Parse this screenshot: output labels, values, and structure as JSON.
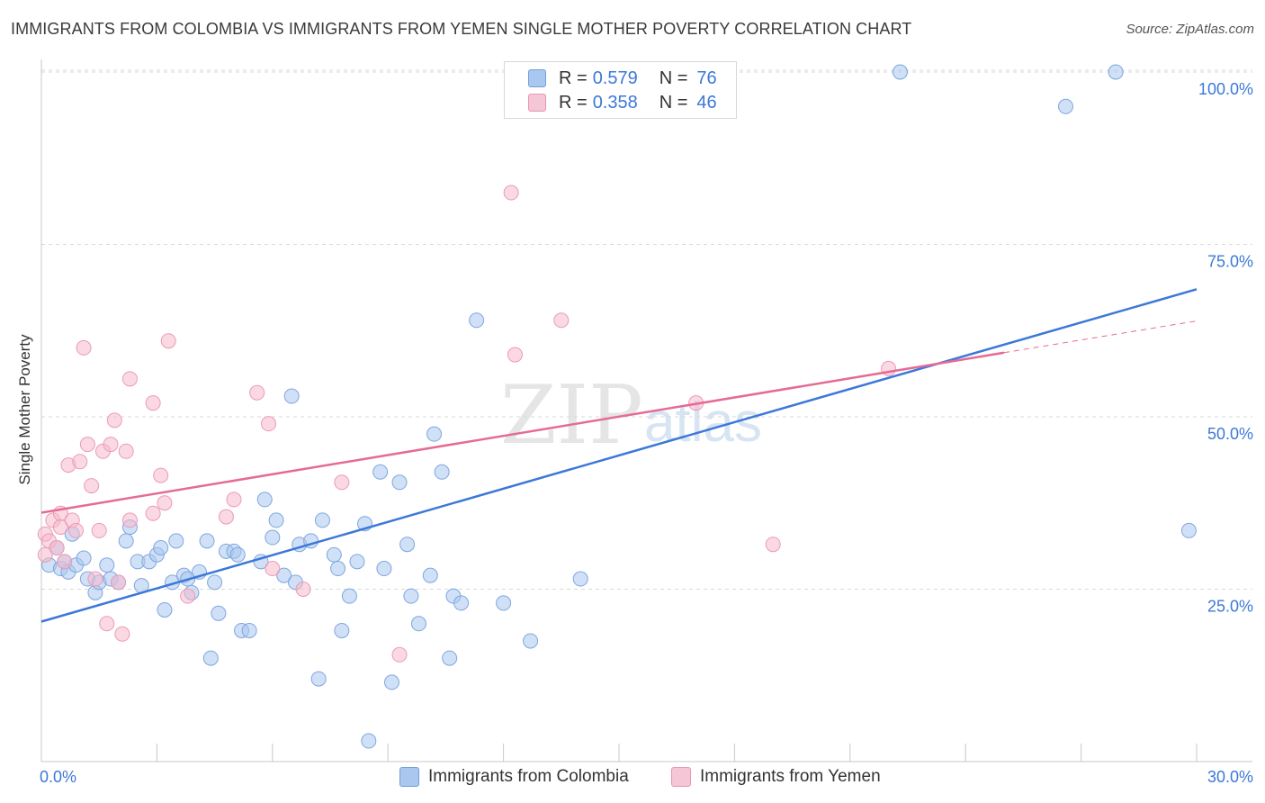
{
  "title": "IMMIGRANTS FROM COLOMBIA VS IMMIGRANTS FROM YEMEN SINGLE MOTHER POVERTY CORRELATION CHART",
  "source": "Source: ZipAtlas.com",
  "legend": {
    "colombia": {
      "r_label": "R =",
      "r_value": "0.579",
      "n_label": "N =",
      "n_value": "76"
    },
    "yemen": {
      "r_label": "R =",
      "r_value": "0.358",
      "n_label": "N =",
      "n_value": "46"
    }
  },
  "watermark": {
    "zip": "ZIP",
    "atlas": "atlas"
  },
  "colors": {
    "colombia": "#a9c7ef",
    "colombia_line": "#3c78d8",
    "yemen": "#f5b9cc",
    "yemen_line": "#e56b95",
    "axis_text": "#3c78d8"
  },
  "chart_data": {
    "type": "scatter",
    "title": "IMMIGRANTS FROM COLOMBIA VS IMMIGRANTS FROM YEMEN SINGLE MOTHER POVERTY CORRELATION CHART",
    "ylabel": "Single Mother Poverty",
    "xlabel": "",
    "xlim": [
      0,
      30
    ],
    "ylim": [
      0,
      105
    ],
    "x_tick_labels": [
      "0.0%",
      "30.0%"
    ],
    "y_tick_labels": [
      "100.0%",
      "75.0%",
      "50.0%",
      "25.0%"
    ],
    "y_ticks": [
      100,
      75,
      50,
      25
    ],
    "grid": true,
    "legend_position": "top-center",
    "series": [
      {
        "name": "Immigrants from Colombia",
        "color": "#a9c7ef",
        "points": [
          [
            0.2,
            28.5
          ],
          [
            0.4,
            31
          ],
          [
            0.5,
            28
          ],
          [
            0.6,
            29
          ],
          [
            0.7,
            27.5
          ],
          [
            0.8,
            33
          ],
          [
            0.9,
            28.5
          ],
          [
            1.1,
            29.5
          ],
          [
            1.2,
            26.5
          ],
          [
            1.4,
            24.5
          ],
          [
            1.5,
            26
          ],
          [
            1.7,
            28.5
          ],
          [
            1.8,
            26.5
          ],
          [
            2.0,
            26
          ],
          [
            2.2,
            32
          ],
          [
            2.3,
            34
          ],
          [
            2.5,
            29
          ],
          [
            2.6,
            25.5
          ],
          [
            2.8,
            29
          ],
          [
            3.0,
            30
          ],
          [
            3.1,
            31
          ],
          [
            3.2,
            22
          ],
          [
            3.4,
            26
          ],
          [
            3.5,
            32
          ],
          [
            3.7,
            27
          ],
          [
            3.8,
            26.5
          ],
          [
            3.9,
            24.5
          ],
          [
            4.1,
            27.5
          ],
          [
            4.3,
            32
          ],
          [
            4.4,
            15
          ],
          [
            4.5,
            26
          ],
          [
            4.6,
            21.5
          ],
          [
            4.8,
            30.5
          ],
          [
            5.0,
            30.5
          ],
          [
            5.1,
            30
          ],
          [
            5.2,
            19
          ],
          [
            5.4,
            19
          ],
          [
            5.7,
            29
          ],
          [
            5.8,
            38
          ],
          [
            6.0,
            32.5
          ],
          [
            6.1,
            35
          ],
          [
            6.3,
            27
          ],
          [
            6.5,
            53
          ],
          [
            6.6,
            26
          ],
          [
            6.7,
            31.5
          ],
          [
            7.0,
            32
          ],
          [
            7.2,
            12
          ],
          [
            7.3,
            35
          ],
          [
            7.6,
            30
          ],
          [
            7.7,
            28
          ],
          [
            7.8,
            19
          ],
          [
            8.0,
            24
          ],
          [
            8.2,
            29
          ],
          [
            8.4,
            34.5
          ],
          [
            8.5,
            3
          ],
          [
            8.8,
            42
          ],
          [
            8.9,
            28
          ],
          [
            9.1,
            11.5
          ],
          [
            9.3,
            40.5
          ],
          [
            9.5,
            31.5
          ],
          [
            9.6,
            24
          ],
          [
            9.8,
            20
          ],
          [
            10.1,
            27
          ],
          [
            10.2,
            47.5
          ],
          [
            10.4,
            42
          ],
          [
            10.6,
            15
          ],
          [
            10.7,
            24
          ],
          [
            10.9,
            23
          ],
          [
            11.3,
            64
          ],
          [
            12.0,
            23
          ],
          [
            12.7,
            17.5
          ],
          [
            14.0,
            26.5
          ],
          [
            22.3,
            100
          ],
          [
            26.6,
            95
          ],
          [
            27.9,
            100
          ],
          [
            29.8,
            33.5
          ]
        ]
      },
      {
        "name": "Immigrants from Yemen",
        "color": "#f5b9cc",
        "points": [
          [
            0.1,
            33
          ],
          [
            0.2,
            32
          ],
          [
            0.3,
            35
          ],
          [
            0.4,
            31
          ],
          [
            0.5,
            36
          ],
          [
            0.5,
            34
          ],
          [
            0.6,
            29
          ],
          [
            0.7,
            43
          ],
          [
            0.8,
            35
          ],
          [
            0.9,
            33.5
          ],
          [
            1.0,
            43.5
          ],
          [
            1.1,
            60
          ],
          [
            1.2,
            46
          ],
          [
            1.3,
            40
          ],
          [
            1.4,
            26.5
          ],
          [
            1.5,
            33.5
          ],
          [
            1.6,
            45
          ],
          [
            1.7,
            20
          ],
          [
            1.8,
            46
          ],
          [
            1.9,
            49.5
          ],
          [
            2.0,
            26
          ],
          [
            2.1,
            18.5
          ],
          [
            2.2,
            45
          ],
          [
            2.3,
            35
          ],
          [
            2.3,
            55.5
          ],
          [
            2.9,
            52
          ],
          [
            2.9,
            36
          ],
          [
            3.1,
            41.5
          ],
          [
            3.2,
            37.5
          ],
          [
            3.3,
            61
          ],
          [
            3.8,
            24
          ],
          [
            4.8,
            35.5
          ],
          [
            5.0,
            38
          ],
          [
            5.6,
            53.5
          ],
          [
            5.9,
            49
          ],
          [
            6.0,
            28
          ],
          [
            6.8,
            25
          ],
          [
            7.8,
            40.5
          ],
          [
            9.3,
            15.5
          ],
          [
            12.2,
            82.5
          ],
          [
            12.3,
            59
          ],
          [
            13.5,
            64
          ],
          [
            17.0,
            52
          ],
          [
            19.0,
            31.5
          ],
          [
            22.0,
            57
          ],
          [
            0.1,
            30
          ]
        ]
      }
    ],
    "trendlines": [
      {
        "series": "Immigrants from Colombia",
        "x": [
          0,
          30
        ],
        "y": [
          20.3,
          68.5
        ]
      },
      {
        "series": "Immigrants from Yemen",
        "x": [
          0,
          25
        ],
        "y": [
          36.1,
          59.3
        ],
        "dashed_extension_x": [
          25,
          30
        ],
        "dashed_extension_y": [
          59.3,
          63.9
        ]
      }
    ]
  },
  "bottom_legend": [
    "Immigrants from Colombia",
    "Immigrants from Yemen"
  ]
}
